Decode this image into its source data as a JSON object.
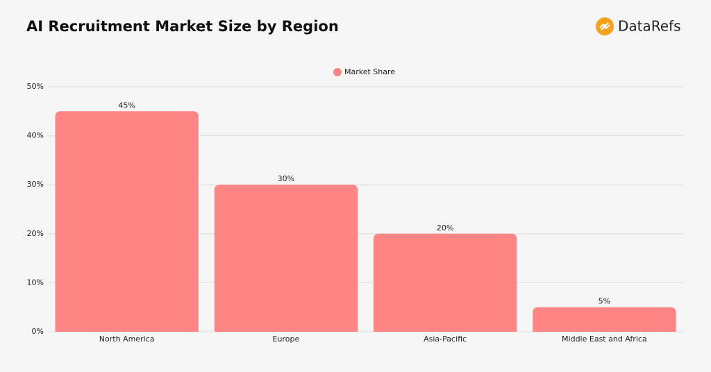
{
  "chart_data": {
    "type": "bar",
    "title": "AI Recruitment Market Size by Region",
    "logo": "DataRefs",
    "categories": [
      "North America",
      "Europe",
      "Asia-Pacific",
      "Middle East and Africa"
    ],
    "series": [
      {
        "name": "Market Share",
        "color": "#ff8585",
        "values": [
          45,
          30,
          20,
          5
        ],
        "value_labels": [
          "45%",
          "30%",
          "20%",
          "5%"
        ]
      }
    ],
    "ylim": [
      0,
      50
    ],
    "yticks": [
      {
        "value": 0,
        "label": "0%"
      },
      {
        "value": 10,
        "label": "10%"
      },
      {
        "value": 20,
        "label": "20%"
      },
      {
        "value": 30,
        "label": "30%"
      },
      {
        "value": 40,
        "label": "40%"
      },
      {
        "value": 50,
        "label": "50%"
      }
    ],
    "grid": true,
    "legend": "top"
  }
}
